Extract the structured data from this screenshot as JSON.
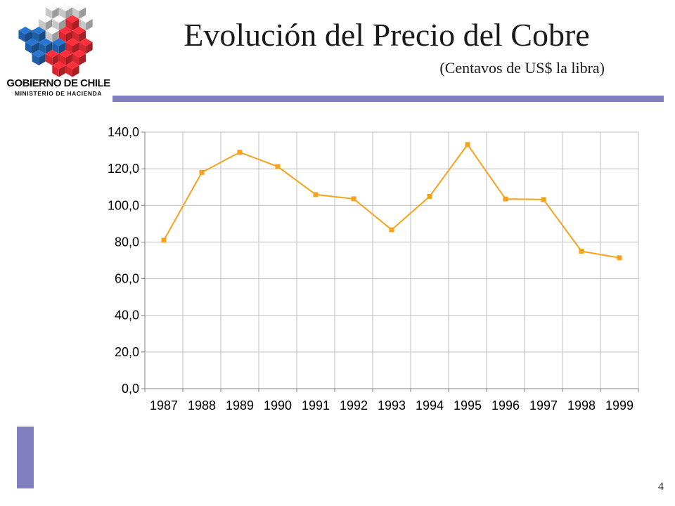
{
  "header": {
    "logo_line1": "GOBIERNO DE CHILE",
    "logo_line2": "MINISTERIO DE HACIENDA",
    "title": "Evolución del Precio del Cobre",
    "subtitle": "(Centavos de US$ la libra)"
  },
  "colors": {
    "accent_bar": "#8080c0",
    "series": "#f5a31a",
    "logo_blue": "#1f5fa8",
    "logo_red": "#d7262f",
    "logo_gray": "#c8c8c8"
  },
  "page_number": "4",
  "chart_data": {
    "type": "line",
    "title": "Evolución del Precio del Cobre",
    "subtitle": "(Centavos de US$ la libra)",
    "xlabel": "",
    "ylabel": "",
    "categories": [
      "1987",
      "1988",
      "1989",
      "1990",
      "1991",
      "1992",
      "1993",
      "1994",
      "1995",
      "1996",
      "1997",
      "1998",
      "1999"
    ],
    "series": [
      {
        "values": [
          81.0,
          118.0,
          129.0,
          121.2,
          105.9,
          103.6,
          86.7,
          104.9,
          133.2,
          103.5,
          103.2,
          75.0,
          71.4
        ]
      }
    ],
    "ylim": [
      0,
      140
    ],
    "yticks": [
      0,
      20,
      40,
      60,
      80,
      100,
      120,
      140
    ],
    "ytick_labels": [
      "0,0",
      "20,0",
      "40,0",
      "60,0",
      "80,0",
      "100,0",
      "120,0",
      "140,0"
    ],
    "grid": true,
    "legend": "none"
  }
}
